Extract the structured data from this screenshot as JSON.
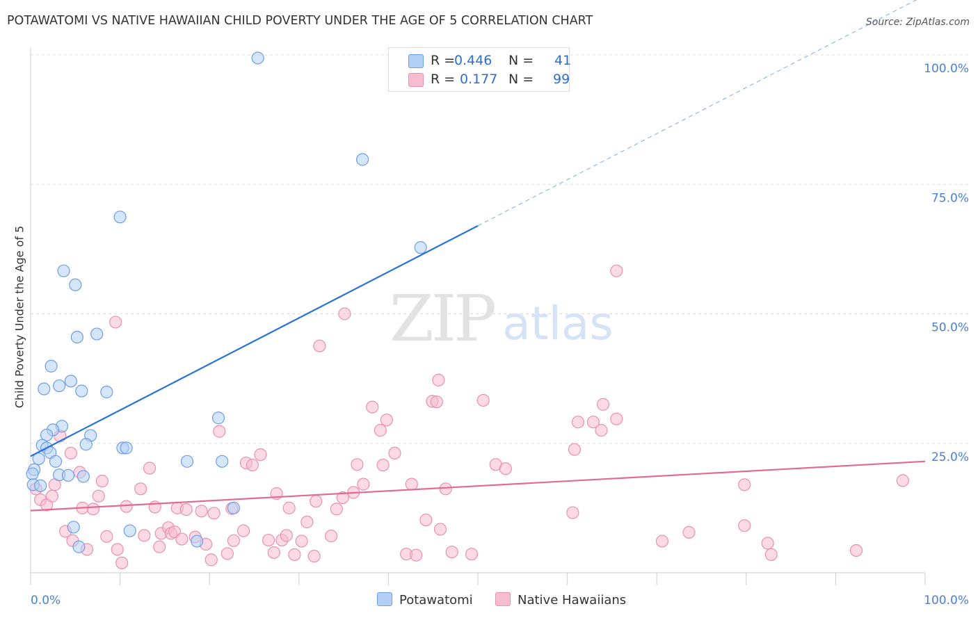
{
  "title": "POTAWATOMI VS NATIVE HAWAIIAN CHILD POVERTY UNDER THE AGE OF 5 CORRELATION CHART",
  "source": "Source: ZipAtlas.com",
  "watermark": {
    "zip": "ZIP",
    "atlas": "atlas"
  },
  "colors": {
    "blue_fill": "#b3cff5",
    "blue_stroke": "#6d9ee6",
    "blue_line": "#2a72d4",
    "pink_fill": "#f7bcd0",
    "pink_stroke": "#e890b0",
    "pink_line": "#e06a95",
    "axis_text": "#4b7fd1",
    "grid": "#dddddd"
  },
  "legend_top": {
    "rows": [
      {
        "r_label": "R =",
        "r_value": "0.446",
        "n_label": "N =",
        "n_value": "41"
      },
      {
        "r_label": "R =",
        "r_value": "0.177",
        "n_label": "N =",
        "n_value": "99"
      }
    ]
  },
  "chart_data": {
    "type": "scatter",
    "title": "POTAWATOMI VS NATIVE HAWAIIAN CHILD POVERTY UNDER THE AGE OF 5 CORRELATION CHART",
    "xlabel": "",
    "ylabel": "Child Poverty Under the Age of 5",
    "xlim": [
      0,
      100
    ],
    "ylim": [
      0,
      100
    ],
    "x_tick_labels": [
      "0.0%",
      "100.0%"
    ],
    "y_tick_labels": [
      "100.0%",
      "75.0%",
      "50.0%",
      "25.0%"
    ],
    "y_ticks": [
      100,
      75,
      50,
      25
    ],
    "grid": true,
    "legend": [
      "Potawatomi",
      "Native Hawaiians"
    ],
    "series": [
      {
        "name": "Potawatomi",
        "color": "blue",
        "trend": {
          "x0": 0,
          "y0": 22.5,
          "x1": 50,
          "y1": 67,
          "dashed_to_x": 100,
          "dashed_to_y": 111.5
        },
        "points": [
          [
            25.4,
            99.4
          ],
          [
            37.1,
            79.8
          ],
          [
            10.0,
            68.7
          ],
          [
            43.6,
            62.8
          ],
          [
            3.7,
            58.3
          ],
          [
            5.0,
            55.6
          ],
          [
            7.4,
            46.1
          ],
          [
            5.2,
            45.5
          ],
          [
            2.3,
            39.9
          ],
          [
            4.5,
            37.0
          ],
          [
            3.2,
            36.1
          ],
          [
            1.5,
            35.5
          ],
          [
            5.7,
            35.1
          ],
          [
            8.5,
            34.9
          ],
          [
            21.0,
            29.9
          ],
          [
            3.5,
            28.3
          ],
          [
            2.5,
            27.6
          ],
          [
            1.8,
            26.6
          ],
          [
            6.7,
            26.5
          ],
          [
            6.2,
            24.8
          ],
          [
            1.3,
            24.6
          ],
          [
            10.3,
            24.1
          ],
          [
            10.7,
            24.1
          ],
          [
            1.8,
            24.1
          ],
          [
            2.2,
            23.2
          ],
          [
            0.9,
            22.0
          ],
          [
            2.8,
            21.5
          ],
          [
            17.5,
            21.5
          ],
          [
            21.4,
            21.5
          ],
          [
            0.4,
            19.9
          ],
          [
            0.2,
            19.1
          ],
          [
            3.2,
            18.9
          ],
          [
            4.2,
            18.8
          ],
          [
            5.9,
            18.6
          ],
          [
            0.3,
            17.0
          ],
          [
            1.1,
            16.8
          ],
          [
            22.7,
            12.5
          ],
          [
            4.8,
            8.8
          ],
          [
            11.1,
            8.1
          ],
          [
            18.6,
            6.1
          ],
          [
            5.4,
            5.0
          ]
        ]
      },
      {
        "name": "Native Hawaiians",
        "color": "pink",
        "trend": {
          "x0": 0,
          "y0": 12,
          "x1": 100,
          "y1": 21.5
        },
        "points": [
          [
            97.5,
            17.8
          ],
          [
            0.6,
            16.2
          ],
          [
            1.1,
            14.1
          ],
          [
            1.8,
            13.1
          ],
          [
            2.4,
            14.8
          ],
          [
            3.3,
            26.4
          ],
          [
            2.7,
            17.0
          ],
          [
            4.5,
            23.1
          ],
          [
            5.5,
            19.4
          ],
          [
            5.8,
            12.5
          ],
          [
            3.9,
            8.0
          ],
          [
            4.7,
            6.2
          ],
          [
            6.3,
            4.5
          ],
          [
            7.0,
            12.3
          ],
          [
            7.6,
            14.8
          ],
          [
            8.0,
            17.7
          ],
          [
            8.5,
            7.0
          ],
          [
            9.5,
            48.4
          ],
          [
            9.7,
            4.5
          ],
          [
            10.2,
            1.9
          ],
          [
            10.7,
            12.8
          ],
          [
            12.3,
            16.2
          ],
          [
            12.7,
            7.2
          ],
          [
            13.3,
            20.2
          ],
          [
            13.9,
            12.7
          ],
          [
            14.4,
            5.0
          ],
          [
            14.6,
            7.6
          ],
          [
            15.4,
            8.7
          ],
          [
            15.7,
            7.6
          ],
          [
            16.1,
            7.9
          ],
          [
            16.4,
            12.5
          ],
          [
            16.9,
            6.5
          ],
          [
            17.4,
            12.2
          ],
          [
            18.4,
            6.9
          ],
          [
            19.1,
            11.9
          ],
          [
            19.6,
            5.5
          ],
          [
            20.2,
            2.5
          ],
          [
            20.5,
            11.5
          ],
          [
            21.1,
            27.3
          ],
          [
            22.0,
            3.7
          ],
          [
            22.5,
            12.4
          ],
          [
            22.7,
            6.2
          ],
          [
            23.8,
            8.1
          ],
          [
            24.1,
            21.2
          ],
          [
            24.8,
            20.8
          ],
          [
            25.7,
            22.8
          ],
          [
            26.6,
            6.3
          ],
          [
            27.2,
            3.9
          ],
          [
            27.5,
            15.3
          ],
          [
            28.1,
            6.3
          ],
          [
            28.6,
            7.2
          ],
          [
            28.9,
            12.5
          ],
          [
            29.5,
            3.5
          ],
          [
            30.3,
            6.1
          ],
          [
            30.9,
            9.8
          ],
          [
            31.7,
            3.2
          ],
          [
            31.9,
            13.8
          ],
          [
            32.3,
            43.8
          ],
          [
            33.6,
            7.1
          ],
          [
            34.2,
            12.3
          ],
          [
            34.9,
            14.5
          ],
          [
            35.1,
            50.0
          ],
          [
            36.1,
            15.5
          ],
          [
            36.5,
            20.9
          ],
          [
            37.2,
            17.1
          ],
          [
            38.2,
            32.0
          ],
          [
            39.1,
            27.5
          ],
          [
            39.4,
            20.8
          ],
          [
            39.8,
            29.5
          ],
          [
            40.7,
            23.1
          ],
          [
            42.0,
            3.6
          ],
          [
            42.6,
            17.1
          ],
          [
            43.1,
            3.4
          ],
          [
            44.2,
            10.2
          ],
          [
            44.9,
            33.1
          ],
          [
            45.4,
            33.0
          ],
          [
            45.6,
            37.2
          ],
          [
            45.8,
            8.4
          ],
          [
            46.4,
            16.2
          ],
          [
            47.1,
            4.0
          ],
          [
            49.3,
            3.6
          ],
          [
            50.6,
            33.3
          ],
          [
            52.0,
            20.9
          ],
          [
            53.1,
            20.1
          ],
          [
            60.6,
            11.6
          ],
          [
            60.8,
            23.8
          ],
          [
            61.2,
            29.1
          ],
          [
            62.9,
            29.1
          ],
          [
            63.8,
            27.5
          ],
          [
            64.0,
            32.5
          ],
          [
            65.5,
            29.7
          ],
          [
            65.5,
            58.3
          ],
          [
            70.6,
            6.1
          ],
          [
            73.6,
            7.8
          ],
          [
            79.8,
            9.1
          ],
          [
            79.8,
            17.0
          ],
          [
            82.4,
            5.7
          ],
          [
            82.8,
            3.5
          ],
          [
            92.3,
            4.3
          ]
        ]
      }
    ]
  }
}
